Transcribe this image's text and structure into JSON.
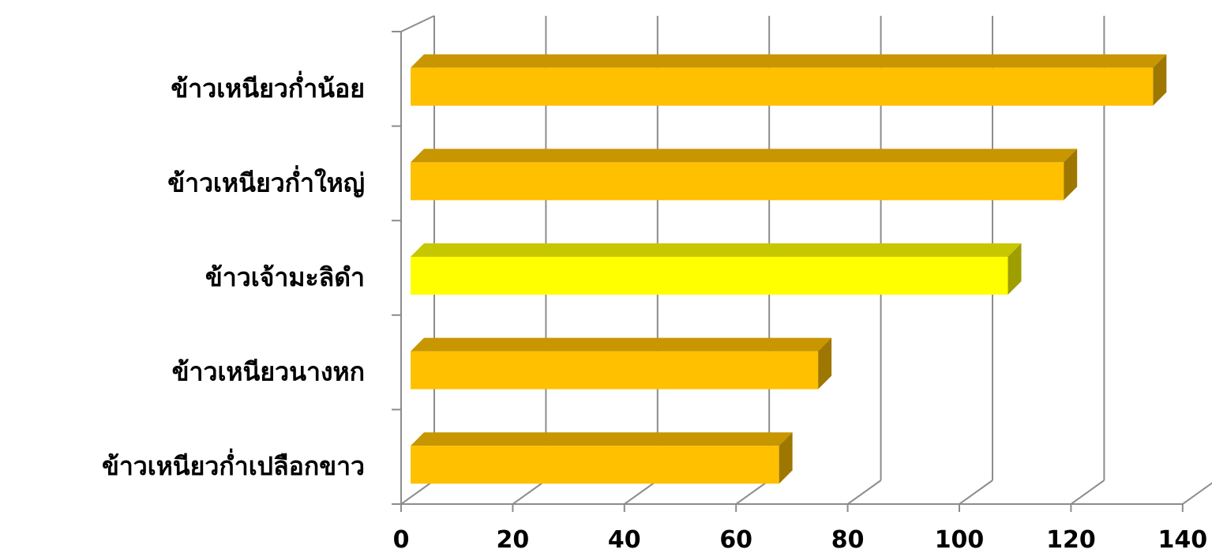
{
  "chart_data": {
    "type": "bar",
    "orientation": "horizontal",
    "style": "3d",
    "categories": [
      "ข้าวเหนียวก่ำน้อย",
      "ข้าวเหนียวก่ำใหญ่",
      "ข้าวเจ้ามะลิดำ",
      "ข้าวเหนียวนางหก",
      "ข้าวเหนียวก่ำเปลือกขาว"
    ],
    "values": [
      133,
      117,
      107,
      73,
      66
    ],
    "bar_colors": [
      "#FFC000",
      "#FFC000",
      "#FFFF00",
      "#FFC000",
      "#FFC000"
    ],
    "xlim": [
      0,
      140
    ],
    "xticks": [
      "0",
      "20",
      "40",
      "60",
      "80",
      "100",
      "120",
      "140"
    ],
    "grid": true,
    "legend": "none",
    "title": "",
    "xlabel": "",
    "ylabel": ""
  }
}
